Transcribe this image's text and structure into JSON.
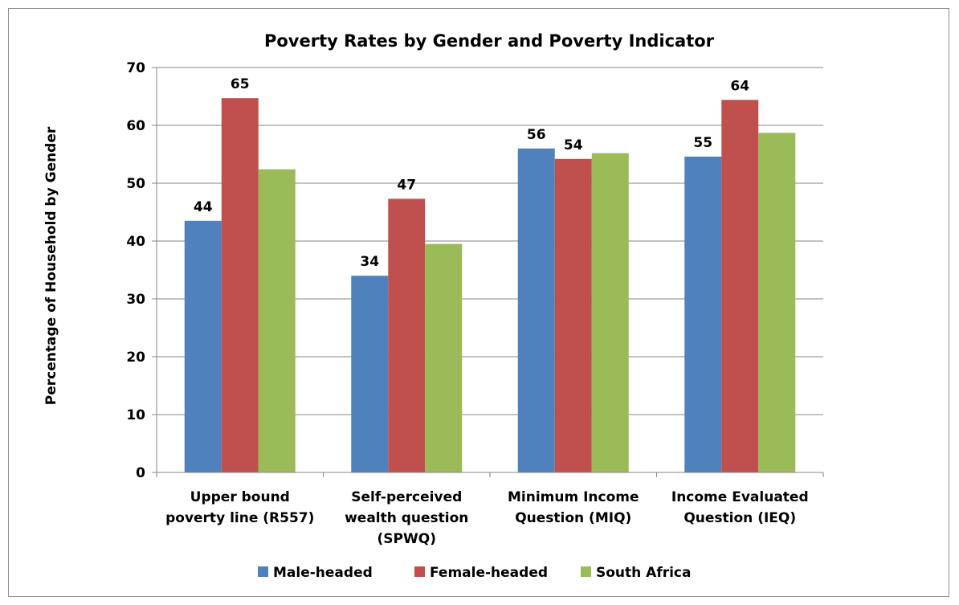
{
  "chart_data": {
    "type": "bar",
    "title": "Poverty Rates by Gender and Poverty Indicator",
    "xlabel": "",
    "ylabel": "Percentage of Household by Gender",
    "ylim": [
      0,
      70
    ],
    "yticks": [
      0,
      10,
      20,
      30,
      40,
      50,
      60,
      70
    ],
    "grid": true,
    "legend_position": "bottom",
    "categories": [
      [
        "Upper bound",
        "poverty line (R557)"
      ],
      [
        "Self-perceived",
        "wealth question",
        "(SPWQ)"
      ],
      [
        "Minimum Income",
        "Question (MIQ)"
      ],
      [
        "Income Evaluated",
        "Question (IEQ)"
      ]
    ],
    "series": [
      {
        "name": "Male-headed",
        "color": "#4F81BD",
        "values": [
          43.5,
          34,
          56,
          54.6
        ],
        "labels": [
          "44",
          "34",
          "56",
          "55"
        ]
      },
      {
        "name": "Female-headed",
        "color": "#C0504D",
        "values": [
          64.7,
          47.3,
          54.2,
          64.4
        ],
        "labels": [
          "65",
          "47",
          "54",
          "64"
        ]
      },
      {
        "name": "South Africa",
        "color": "#9BBB59",
        "values": [
          52.4,
          39.5,
          55.2,
          58.7
        ],
        "labels": [
          "",
          "",
          "",
          ""
        ]
      }
    ]
  }
}
